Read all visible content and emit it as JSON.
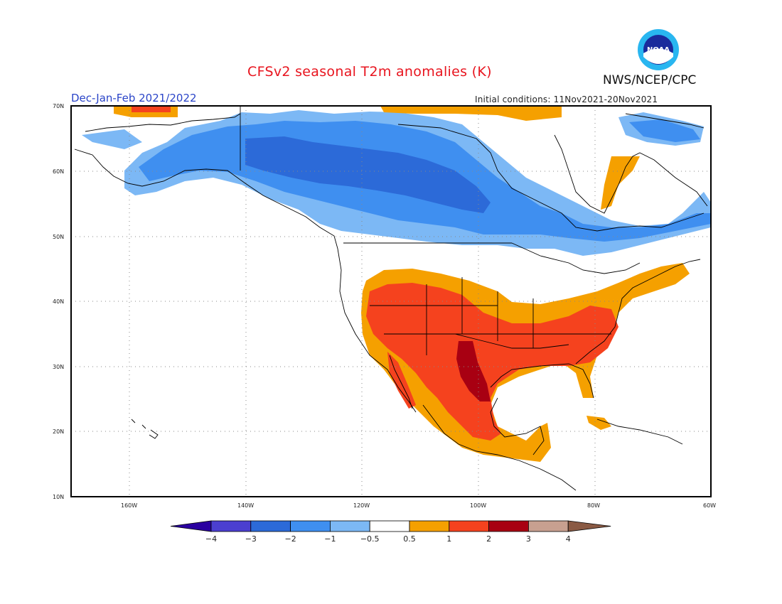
{
  "header": {
    "title": "CFSv2 seasonal T2m anomalies (K)",
    "organization": "NWS/NCEP/CPC",
    "season": "Dec-Jan-Feb 2021/2022",
    "initial_conditions": "Initial conditions: 11Nov2021-20Nov2021",
    "logo_text": "NOAA"
  },
  "map": {
    "lat_labels": [
      "70N",
      "60N",
      "50N",
      "40N",
      "30N",
      "20N",
      "10N"
    ],
    "lon_labels": [
      "160W",
      "140W",
      "120W",
      "100W",
      "80W",
      "60W"
    ],
    "lat_range": [
      10,
      70
    ],
    "lon_range": [
      -170,
      -60
    ]
  },
  "colorbar": {
    "labels": [
      "-4",
      "-3",
      "-2",
      "-1",
      "-0.5",
      "0.5",
      "1",
      "2",
      "3",
      "4"
    ],
    "colors": [
      "#2a00a0",
      "#4b3fd0",
      "#2c6ad8",
      "#3f8ff0",
      "#7cb8f5",
      "#ffffff",
      "#f5a000",
      "#f5421e",
      "#a80012",
      "#c8a090",
      "#8a5a44"
    ]
  }
}
